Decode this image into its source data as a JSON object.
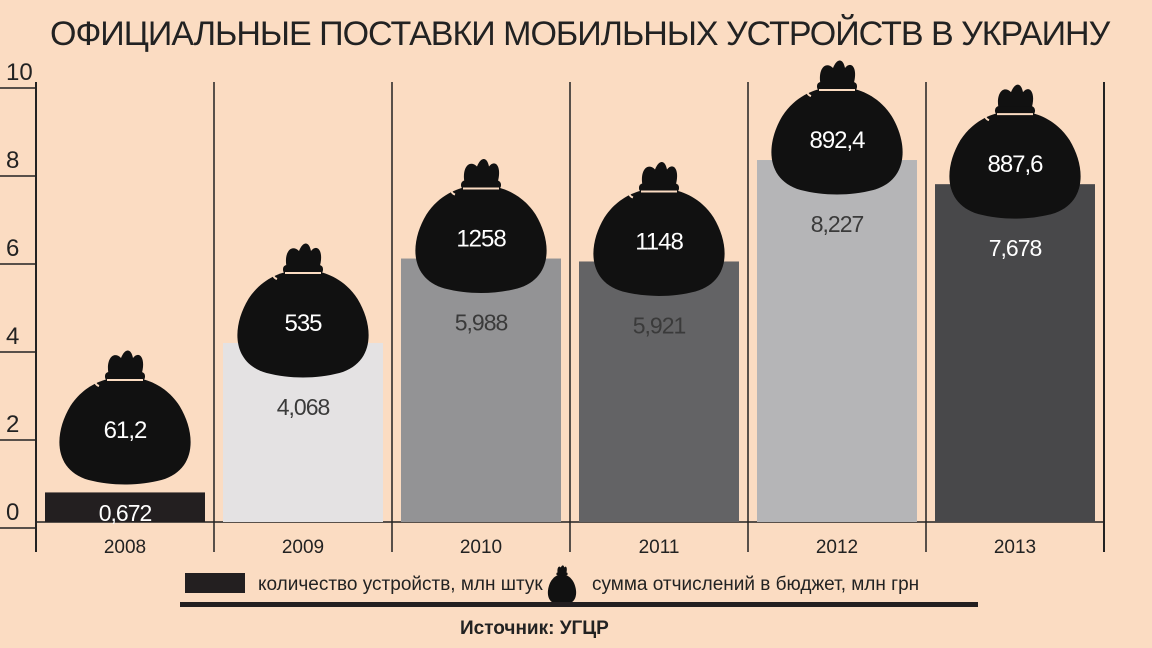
{
  "chart_data": {
    "type": "bar",
    "title": "ОФИЦИАЛЬНЫЕ ПОСТАВКИ МОБИЛЬНЫХ УСТРОЙСТВ В УКРАИНУ",
    "categories": [
      "2008",
      "2009",
      "2010",
      "2011",
      "2012",
      "2013"
    ],
    "series": [
      {
        "name": "количество устройств, млн штук",
        "values": [
          0.672,
          4.068,
          5.988,
          5.921,
          8.227,
          7.678
        ],
        "labels": [
          "0,672",
          "4,068",
          "5,988",
          "5,921",
          "8,227",
          "7,678"
        ]
      },
      {
        "name": "сумма отчислений в бюджет, млн грн",
        "values": [
          61.2,
          535,
          1258,
          1148,
          892.4,
          887.6
        ],
        "labels": [
          "61,2",
          "535",
          "1258",
          "1148",
          "892,4",
          "887,6"
        ]
      }
    ],
    "y_ticks": [
      "0",
      "2",
      "4",
      "6",
      "8",
      "10"
    ],
    "ylim": [
      0,
      10
    ],
    "grid": false,
    "legend": "bottom",
    "source": "Источник: УГЦР"
  },
  "colors": {
    "background": "#fbdcc2",
    "bars": [
      "#231f20",
      "#e4e2e3",
      "#939395",
      "#636365",
      "#b5b5b7",
      "#48484a"
    ],
    "bar_label_colors": [
      "#ffffff",
      "#3a3a3a",
      "#3a3a3a",
      "#3a3a3a",
      "#3a3a3a",
      "#ffffff"
    ],
    "bag": "#111111"
  },
  "icons": {
    "budget": "money-bag-icon"
  }
}
